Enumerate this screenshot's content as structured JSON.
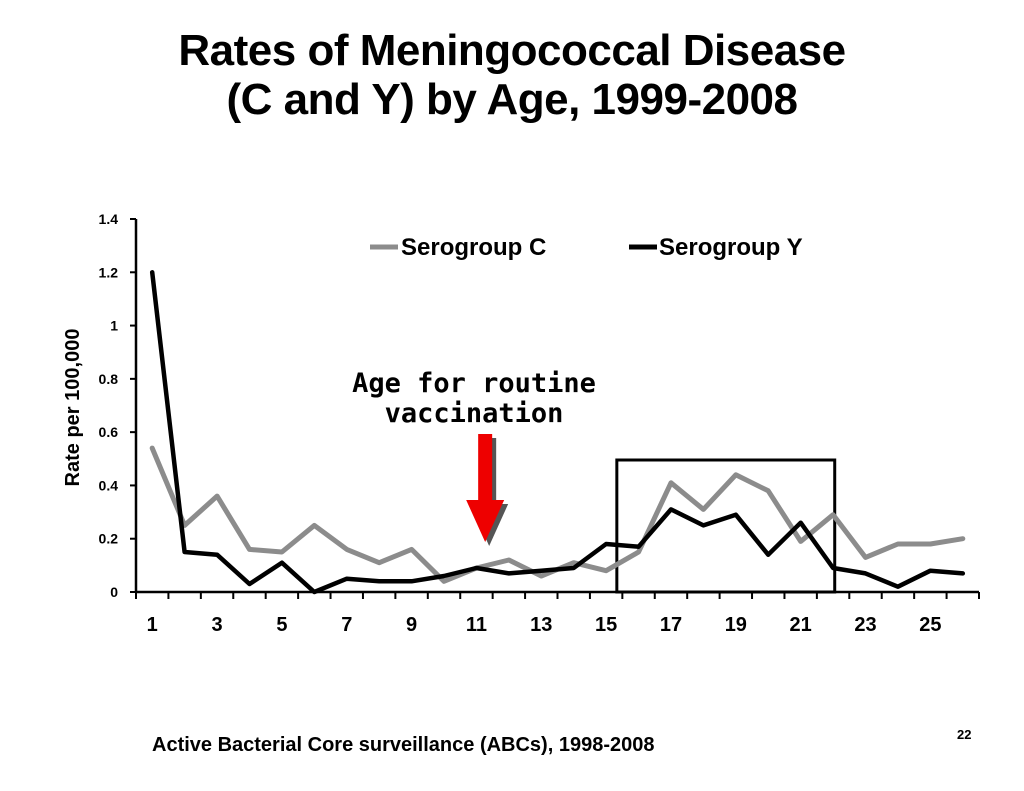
{
  "slide": {
    "title_line1": "Rates of Meningococcal Disease",
    "title_line2": "(C and Y) by Age, 1999-2008",
    "footer": "Active Bacterial Core surveillance (ABCs), 1998-2008",
    "page_number": "22"
  },
  "annotation": {
    "line1": "Age for routine",
    "line2": "vaccination",
    "arrow_color": "#ee0000",
    "arrow_at_age": 11.3,
    "highlight_box_ages": [
      15,
      22
    ]
  },
  "chart_data": {
    "type": "line",
    "title": "",
    "xlabel": "",
    "ylabel": "Rate per 100,000",
    "x": [
      1,
      2,
      3,
      4,
      5,
      6,
      7,
      8,
      9,
      10,
      11,
      12,
      13,
      14,
      15,
      16,
      17,
      18,
      19,
      20,
      21,
      22,
      23,
      24,
      25,
      26
    ],
    "xticks": [
      "1",
      "3",
      "5",
      "7",
      "9",
      "11",
      "13",
      "15",
      "17",
      "19",
      "21",
      "23",
      "25"
    ],
    "yticks": [
      "0",
      "0.2",
      "0.4",
      "0.6",
      "0.8",
      "1",
      "1.2",
      "1.4"
    ],
    "ylim": [
      0,
      1.4
    ],
    "legend_position": "top-right",
    "grid": false,
    "series": [
      {
        "name": "Serogroup C",
        "color": "#8c8c8c",
        "values": [
          0.54,
          0.25,
          0.36,
          0.16,
          0.15,
          0.25,
          0.16,
          0.11,
          0.16,
          0.04,
          0.09,
          0.12,
          0.06,
          0.11,
          0.08,
          0.15,
          0.41,
          0.31,
          0.44,
          0.38,
          0.19,
          0.29,
          0.13,
          0.18,
          0.18,
          0.2
        ]
      },
      {
        "name": "Serogroup Y",
        "color": "#000000",
        "values": [
          1.2,
          0.15,
          0.14,
          0.03,
          0.11,
          0.0,
          0.05,
          0.04,
          0.04,
          0.06,
          0.09,
          0.07,
          0.08,
          0.09,
          0.18,
          0.17,
          0.31,
          0.25,
          0.29,
          0.14,
          0.26,
          0.09,
          0.07,
          0.02,
          0.08,
          0.07
        ]
      }
    ]
  }
}
